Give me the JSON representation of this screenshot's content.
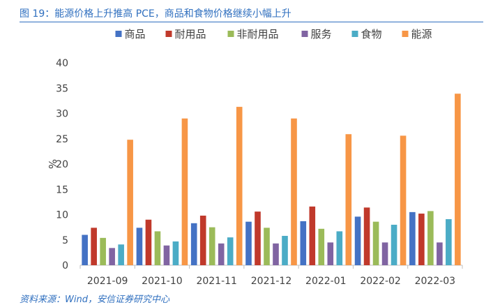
{
  "figure_title": "图 19：能源价格上升推高 PCE，商品和食物价格继续小幅上升",
  "source_note": "资料来源：Wind，安信证券研究中心",
  "chart_data": {
    "type": "bar",
    "categories": [
      "2021-09",
      "2021-10",
      "2021-11",
      "2021-12",
      "2022-01",
      "2022-02",
      "2022-03"
    ],
    "series": [
      {
        "name": "商品",
        "color": "#4472c4",
        "values": [
          6.0,
          7.4,
          8.3,
          8.6,
          8.7,
          9.6,
          10.5
        ]
      },
      {
        "name": "耐用品",
        "color": "#c0392b",
        "values": [
          7.4,
          9.0,
          9.8,
          10.6,
          11.6,
          11.4,
          10.2
        ]
      },
      {
        "name": "非耐用品",
        "color": "#9bbb59",
        "values": [
          5.4,
          6.7,
          7.5,
          7.4,
          7.2,
          8.6,
          10.7
        ]
      },
      {
        "name": "服务",
        "color": "#8064a2",
        "values": [
          3.4,
          3.9,
          4.3,
          4.3,
          4.5,
          4.5,
          4.5
        ]
      },
      {
        "name": "食物",
        "color": "#4bacc6",
        "values": [
          4.1,
          4.7,
          5.5,
          5.8,
          6.7,
          8.0,
          9.1
        ]
      },
      {
        "name": "能源",
        "color": "#f79646",
        "values": [
          24.8,
          29.0,
          31.3,
          29.0,
          25.9,
          25.6,
          33.9
        ]
      }
    ],
    "ylabel": "%",
    "ylim": [
      0,
      40
    ],
    "yticks": [
      0,
      5,
      10,
      15,
      20,
      25,
      30,
      35,
      40
    ],
    "grid": false,
    "legend_position": "top"
  }
}
